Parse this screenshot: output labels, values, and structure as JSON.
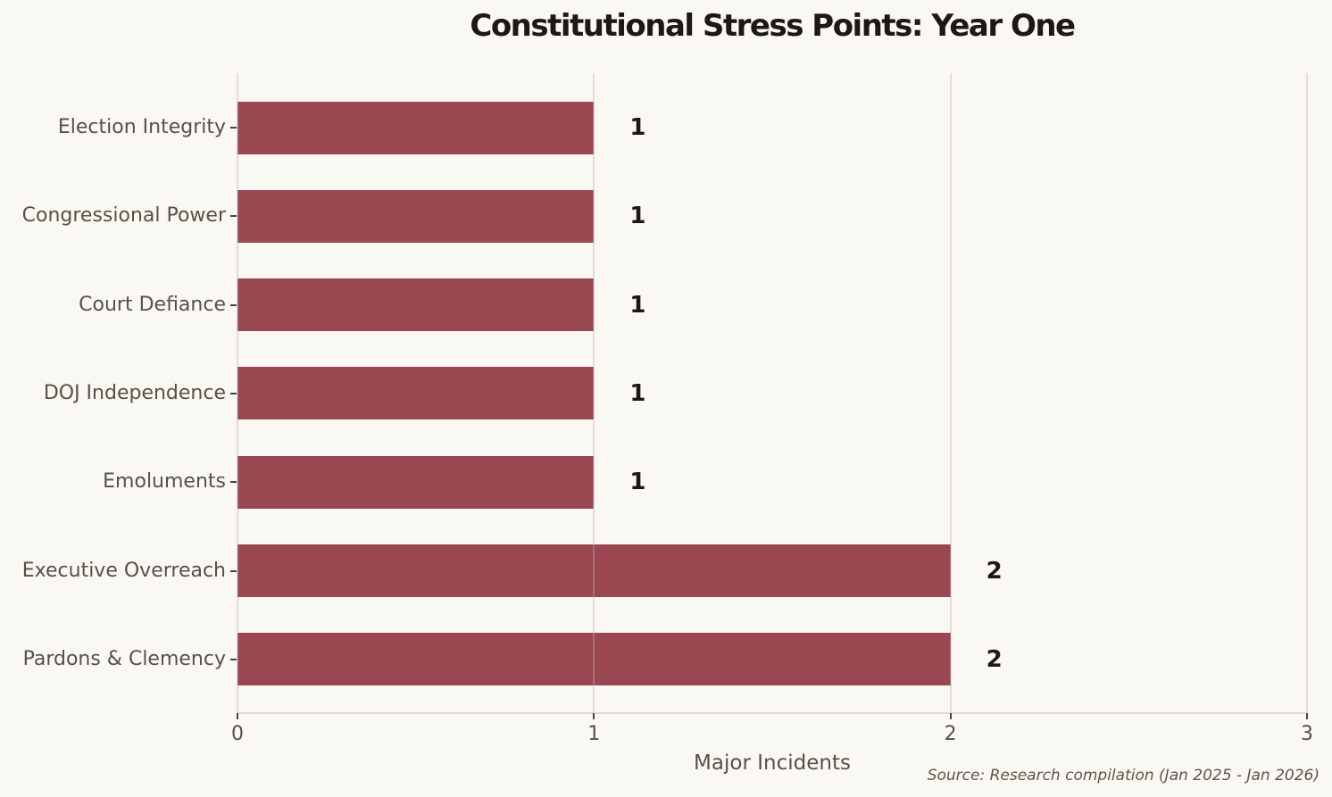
{
  "chart_data": {
    "type": "bar",
    "orientation": "horizontal",
    "title": "Constitutional Stress Points: Year One",
    "xlabel": "Major Incidents",
    "ylabel": "",
    "categories": [
      "Election Integrity",
      "Congressional Power",
      "Court Defiance",
      "DOJ Independence",
      "Emoluments",
      "Executive Overreach",
      "Pardons & Clemency"
    ],
    "values": [
      1,
      1,
      1,
      1,
      1,
      2,
      2
    ],
    "value_labels": [
      "1",
      "1",
      "1",
      "1",
      "1",
      "2",
      "2"
    ],
    "xlim": [
      0,
      3
    ],
    "xticks": [
      "0",
      "1",
      "2",
      "3"
    ],
    "grid": true,
    "legend": false,
    "source_note": "Source: Research compilation (Jan 2025 - Jan 2026)"
  },
  "colors": {
    "background": "#FAF8F2",
    "bar": "#9A4752",
    "title_text": "#1B1815",
    "value_label_text": "#1B1815",
    "category_label_text": "#575049",
    "tick_label_text": "#575049",
    "source_text": "#5C554E",
    "gridline": "rgba(186,180,172,0.38)",
    "axis_line": "#DEDAD2",
    "tick_mark": "#494440"
  }
}
